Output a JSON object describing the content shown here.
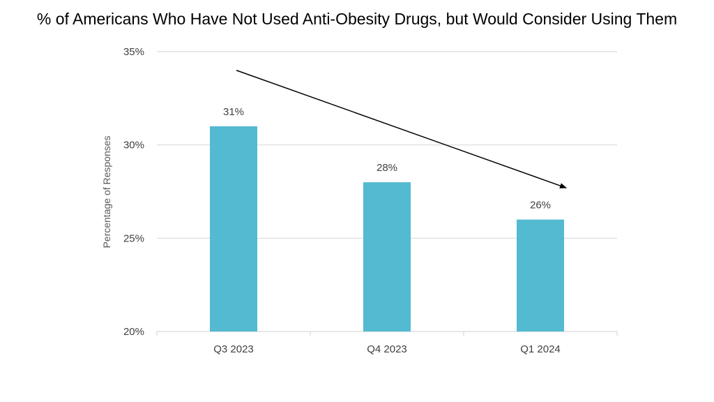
{
  "chart_data": {
    "type": "bar",
    "title": "% of Americans Who Have Not Used Anti-Obesity Drugs, but Would Consider Using Them",
    "xlabel": "",
    "ylabel": "Percentage of Responses",
    "categories": [
      "Q3 2023",
      "Q4 2023",
      "Q1 2024"
    ],
    "values": [
      31,
      28,
      26
    ],
    "data_labels": [
      "31%",
      "28%",
      "26%"
    ],
    "ylim": [
      20,
      35
    ],
    "yticks": [
      20,
      25,
      30,
      35
    ],
    "ytick_labels": [
      "20%",
      "25%",
      "30%",
      "35%"
    ],
    "grid": true,
    "legend": "none",
    "bar_color": "#53BAD1",
    "gridline_color": "#D9D9D9",
    "annotations": [
      {
        "type": "arrow",
        "meaning": "downward trend",
        "from": {
          "x": "Q3 2023",
          "y": 34.0
        },
        "to": {
          "x": "Q1 2024",
          "y": 27.7
        }
      }
    ]
  }
}
